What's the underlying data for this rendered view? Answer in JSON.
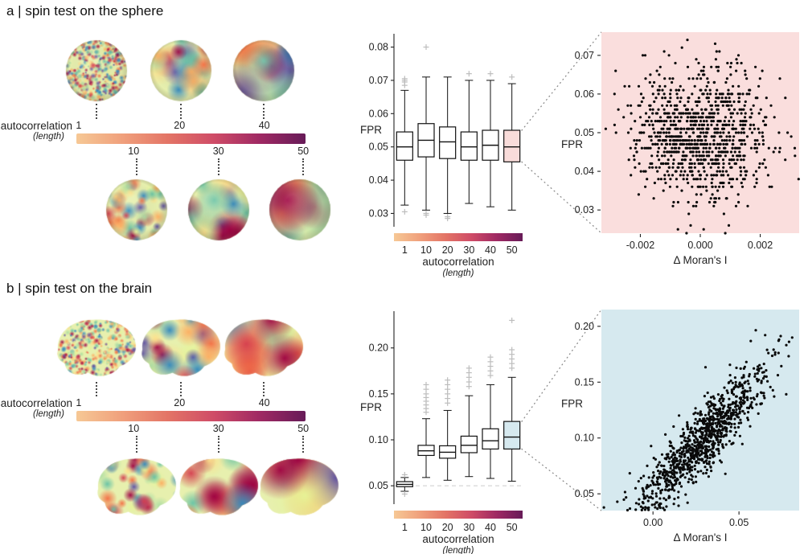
{
  "figure": {
    "background": "#ffffff",
    "colorbar_label": "autocorrelation",
    "colorbar_sublabel": "(length)",
    "colorbar_colors": [
      "#f6c895",
      "#f0a07c",
      "#e37466",
      "#cf4c67",
      "#9f2963",
      "#671b58"
    ],
    "colorbar_ticks_above": [
      "1",
      "20",
      "40"
    ],
    "colorbar_ticks_below": [
      "10",
      "30",
      "50"
    ],
    "surface_colormap": [
      "#5e4fa2",
      "#3288bd",
      "#66c2a5",
      "#abdda4",
      "#e6f598",
      "#fee08b",
      "#fdae61",
      "#f46d43",
      "#d53e4f",
      "#9e0142"
    ]
  },
  "panels": [
    {
      "id": "a",
      "title": "a | spin test on the sphere",
      "surface_shape": "sphere",
      "surfaces_top": [
        {
          "length": 1
        },
        {
          "length": 20
        },
        {
          "length": 40
        }
      ],
      "surfaces_bottom": [
        {
          "length": 10
        },
        {
          "length": 30
        },
        {
          "length": 50
        }
      ],
      "accent": "#f9dcda"
    },
    {
      "id": "b",
      "title": "b | spin test on the brain",
      "surface_shape": "brain",
      "surfaces_top": [
        {
          "length": 1
        },
        {
          "length": 20
        },
        {
          "length": 40
        }
      ],
      "surfaces_bottom": [
        {
          "length": 10
        },
        {
          "length": 30
        },
        {
          "length": 50
        }
      ],
      "accent": "#d6e9ef"
    }
  ],
  "chart_data": [
    {
      "id": "a-fpr-boxplot",
      "type": "box",
      "panel": "a",
      "xlabel": "autocorrelation",
      "xlabel_sub": "(length)",
      "ylabel": "FPR",
      "categories": [
        "1",
        "10",
        "20",
        "30",
        "40",
        "50"
      ],
      "ylim": [
        0.026,
        0.084
      ],
      "yticks": [
        0.03,
        0.04,
        0.05,
        0.06,
        0.07,
        0.08
      ],
      "ytick_labels": [
        "0.03",
        "0.04",
        "0.05",
        "0.06",
        "0.07",
        "0.08"
      ],
      "grid": false,
      "highlight_fill": "#f9dcda",
      "x_axis_is_colorbar": true,
      "boxes": [
        {
          "low": 0.0325,
          "q1": 0.046,
          "median": 0.05,
          "q3": 0.0545,
          "high": 0.067,
          "outliers_high": [
            0.0685,
            0.0695,
            0.07,
            0.0705
          ],
          "outliers_low": [
            0.0305
          ]
        },
        {
          "low": 0.031,
          "q1": 0.047,
          "median": 0.052,
          "q3": 0.057,
          "high": 0.071,
          "outliers_high": [
            0.08
          ],
          "outliers_low": [
            0.0295,
            0.03
          ]
        },
        {
          "low": 0.03,
          "q1": 0.0465,
          "median": 0.0515,
          "q3": 0.056,
          "high": 0.071,
          "outliers_high": [],
          "outliers_low": [
            0.0285,
            0.029
          ]
        },
        {
          "low": 0.033,
          "q1": 0.046,
          "median": 0.05,
          "q3": 0.0545,
          "high": 0.07,
          "outliers_high": [
            0.072
          ],
          "outliers_low": []
        },
        {
          "low": 0.032,
          "q1": 0.046,
          "median": 0.0505,
          "q3": 0.055,
          "high": 0.07,
          "outliers_high": [
            0.072
          ],
          "outliers_low": []
        },
        {
          "low": 0.031,
          "q1": 0.0455,
          "median": 0.05,
          "q3": 0.055,
          "high": 0.069,
          "outliers_high": [
            0.071
          ],
          "outliers_low": [],
          "highlight": true
        }
      ]
    },
    {
      "id": "a-fpr-vs-delta-morans-i",
      "type": "scatter",
      "panel": "a",
      "xlabel": "Δ Moran's I",
      "ylabel": "FPR",
      "background": "#fadedd",
      "xlim": [
        -0.0033,
        0.0033
      ],
      "ylim": [
        0.024,
        0.076
      ],
      "xticks": [
        -0.002,
        0.0,
        0.002
      ],
      "xtick_labels": [
        "-0.002",
        "0.000",
        "0.002"
      ],
      "yticks": [
        0.03,
        0.04,
        0.05,
        0.06,
        0.07
      ],
      "ytick_labels": [
        "0.03",
        "0.04",
        "0.05",
        "0.06",
        "0.07"
      ],
      "points": {
        "n": 1000,
        "x_mean": 0.0,
        "x_sd": 0.0011,
        "y_intercept": 0.05,
        "slope": 0.0,
        "noise_sd": 0.0085,
        "y_quantize": 0.001,
        "correlation": "none",
        "seed": 7
      }
    },
    {
      "id": "b-fpr-boxplot",
      "type": "box",
      "panel": "b",
      "xlabel": "autocorrelation",
      "xlabel_sub": "(length)",
      "ylabel": "FPR",
      "categories": [
        "1",
        "10",
        "20",
        "30",
        "40",
        "50"
      ],
      "ylim": [
        0.03,
        0.24
      ],
      "yticks": [
        0.05,
        0.1,
        0.15,
        0.2
      ],
      "ytick_labels": [
        "0.05",
        "0.10",
        "0.15",
        "0.20"
      ],
      "grid": false,
      "ref_line": 0.05,
      "highlight_fill": "#d6e9ef",
      "x_axis_is_colorbar": true,
      "boxes": [
        {
          "low": 0.044,
          "q1": 0.049,
          "median": 0.0515,
          "q3": 0.0545,
          "high": 0.059,
          "outliers_high": [
            0.062
          ],
          "outliers_low": [
            0.041
          ]
        },
        {
          "low": 0.059,
          "q1": 0.083,
          "median": 0.088,
          "q3": 0.094,
          "high": 0.123,
          "outliers_high": [
            0.13,
            0.134,
            0.138,
            0.142,
            0.146,
            0.15,
            0.155,
            0.16
          ],
          "outliers_low": []
        },
        {
          "low": 0.056,
          "q1": 0.08,
          "median": 0.0865,
          "q3": 0.0935,
          "high": 0.132,
          "outliers_high": [
            0.14,
            0.145,
            0.15,
            0.155,
            0.16,
            0.165
          ],
          "outliers_low": []
        },
        {
          "low": 0.06,
          "q1": 0.086,
          "median": 0.094,
          "q3": 0.104,
          "high": 0.148,
          "outliers_high": [
            0.158,
            0.163,
            0.168,
            0.173,
            0.178
          ],
          "outliers_low": []
        },
        {
          "low": 0.058,
          "q1": 0.09,
          "median": 0.099,
          "q3": 0.112,
          "high": 0.16,
          "outliers_high": [
            0.17,
            0.175,
            0.18,
            0.185,
            0.19
          ],
          "outliers_low": []
        },
        {
          "low": 0.055,
          "q1": 0.09,
          "median": 0.103,
          "q3": 0.12,
          "high": 0.168,
          "outliers_high": [
            0.178,
            0.183,
            0.188,
            0.193,
            0.198,
            0.23
          ],
          "outliers_low": [],
          "highlight": true
        }
      ]
    },
    {
      "id": "b-fpr-vs-delta-morans-i",
      "type": "scatter",
      "panel": "b",
      "xlabel": "Δ Moran's I",
      "ylabel": "FPR",
      "background": "#d6e9ef",
      "xlim": [
        -0.03,
        0.085
      ],
      "ylim": [
        0.035,
        0.215
      ],
      "xticks": [
        0.0,
        0.05
      ],
      "xtick_labels": [
        "0.00",
        "0.05"
      ],
      "yticks": [
        0.05,
        0.1,
        0.15,
        0.2
      ],
      "ytick_labels": [
        "0.05",
        "0.10",
        "0.15",
        "0.20"
      ],
      "points": {
        "n": 1000,
        "x_mean": 0.028,
        "x_sd": 0.02,
        "y_intercept": 0.052,
        "slope": 1.6,
        "noise_sd": 0.015,
        "y_quantize": 0,
        "correlation": "strong positive",
        "seed": 21
      }
    }
  ]
}
